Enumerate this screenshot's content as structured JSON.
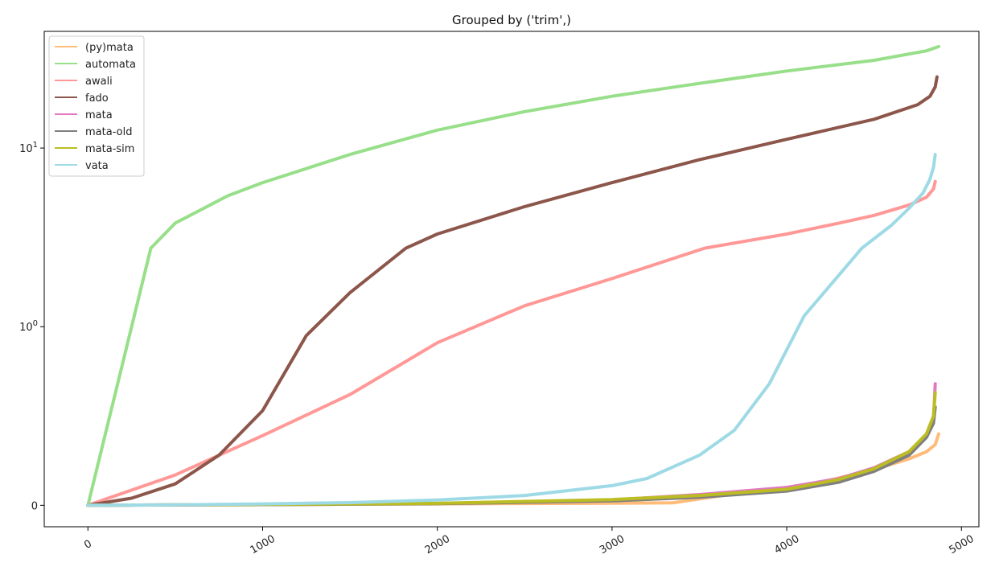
{
  "chart_data": {
    "type": "line",
    "title": "Grouped by ('trim',)",
    "xlabel": "",
    "ylabel": "",
    "xlim": [
      -250,
      5100
    ],
    "yscale": "symlog",
    "linthresh": 1,
    "ylim": [
      -0.12,
      45
    ],
    "x_ticks": [
      {
        "value": 0,
        "label": "0"
      },
      {
        "value": 1000,
        "label": "1000"
      },
      {
        "value": 2000,
        "label": "2000"
      },
      {
        "value": 3000,
        "label": "3000"
      },
      {
        "value": 4000,
        "label": "4000"
      },
      {
        "value": 5000,
        "label": "5000"
      }
    ],
    "y_ticks": [
      {
        "value": 0,
        "base": "0",
        "exp": ""
      },
      {
        "value": 1,
        "base": "10",
        "exp": "0"
      },
      {
        "value": 10,
        "base": "10",
        "exp": "1"
      }
    ],
    "grid": false,
    "legend_position": "top-left",
    "series": [
      {
        "name": "(py)mata",
        "color": "#ffbb78",
        "x": [
          0,
          500,
          1000,
          1500,
          2000,
          2500,
          3000,
          3350,
          3600,
          4000,
          4200,
          4500,
          4700,
          4800,
          4850,
          4860,
          4870
        ],
        "y": [
          0,
          0.002,
          0.004,
          0.006,
          0.008,
          0.01,
          0.012,
          0.014,
          0.05,
          0.1,
          0.13,
          0.2,
          0.26,
          0.3,
          0.34,
          0.37,
          0.4
        ]
      },
      {
        "name": "automata",
        "color": "#98df8a",
        "x": [
          0,
          360,
          500,
          800,
          1000,
          1500,
          2000,
          2500,
          3000,
          3500,
          4000,
          4500,
          4800,
          4870
        ],
        "y": [
          0,
          2.75,
          3.8,
          5.4,
          6.4,
          9.2,
          12.6,
          16,
          19.5,
          23,
          27,
          31,
          35,
          37
        ]
      },
      {
        "name": "awali",
        "color": "#ff9896",
        "x": [
          0,
          500,
          1000,
          1500,
          2000,
          2500,
          3000,
          3530,
          4000,
          4300,
          4500,
          4700,
          4800,
          4840,
          4850
        ],
        "y": [
          0,
          0.17,
          0.39,
          0.62,
          0.91,
          1.31,
          1.86,
          2.75,
          3.3,
          3.8,
          4.2,
          4.8,
          5.3,
          5.9,
          6.5
        ]
      },
      {
        "name": "fado",
        "color": "#8c564b",
        "x": [
          0,
          250,
          500,
          750,
          1000,
          1250,
          1500,
          1820,
          2000,
          2500,
          3000,
          3500,
          4000,
          4500,
          4750,
          4820,
          4850,
          4860
        ],
        "y": [
          0,
          0.04,
          0.12,
          0.28,
          0.53,
          0.95,
          1.55,
          2.75,
          3.3,
          4.7,
          6.4,
          8.6,
          11.2,
          14.5,
          17.5,
          19.5,
          22,
          25
        ]
      },
      {
        "name": "mata",
        "color": "#e377c2",
        "x": [
          0,
          1000,
          2000,
          3000,
          3500,
          4000,
          4300,
          4500,
          4700,
          4800,
          4840,
          4850
        ],
        "y": [
          0,
          0.005,
          0.01,
          0.03,
          0.06,
          0.1,
          0.15,
          0.21,
          0.3,
          0.39,
          0.47,
          0.68
        ]
      },
      {
        "name": "mata-old",
        "color": "#7f7f7f",
        "x": [
          0,
          1000,
          2000,
          3000,
          3500,
          4000,
          4300,
          4500,
          4700,
          4800,
          4840,
          4850
        ],
        "y": [
          0,
          0.004,
          0.009,
          0.025,
          0.045,
          0.08,
          0.13,
          0.19,
          0.28,
          0.38,
          0.46,
          0.55
        ]
      },
      {
        "name": "mata-sim",
        "color": "#bcbd22",
        "x": [
          0,
          1000,
          2000,
          3000,
          3500,
          4000,
          4300,
          4500,
          4700,
          4800,
          4840,
          4850
        ],
        "y": [
          0,
          0.005,
          0.011,
          0.032,
          0.055,
          0.09,
          0.145,
          0.205,
          0.3,
          0.4,
          0.5,
          0.63
        ]
      },
      {
        "name": "vata",
        "color": "#9edae5",
        "x": [
          0,
          500,
          1000,
          1500,
          2000,
          2500,
          3000,
          3200,
          3500,
          3700,
          3900,
          4100,
          4300,
          4430,
          4600,
          4700,
          4780,
          4820,
          4840,
          4850
        ],
        "y": [
          0,
          0.003,
          0.008,
          0.015,
          0.03,
          0.055,
          0.11,
          0.15,
          0.28,
          0.42,
          0.68,
          1.15,
          1.95,
          2.75,
          3.7,
          4.6,
          5.6,
          6.7,
          7.8,
          9.2
        ]
      }
    ]
  }
}
